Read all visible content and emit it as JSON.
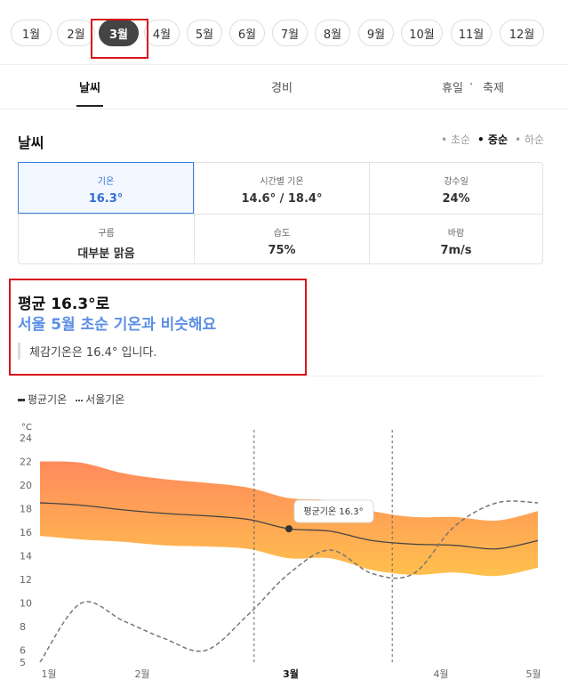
{
  "months": {
    "items": [
      "1월",
      "2월",
      "3월",
      "4월",
      "5월",
      "6월",
      "7월",
      "8월",
      "9월",
      "10월",
      "11월",
      "12월"
    ],
    "active_index": 2
  },
  "tabs": [
    "날씨",
    "경비",
    "휴일",
    "축제"
  ],
  "tabs_separator": "·",
  "weather": {
    "title": "날씨",
    "periods": [
      "초순",
      "중순",
      "하순"
    ],
    "active_period": "중순",
    "stats": [
      {
        "label": "기온",
        "value": "16.3°"
      },
      {
        "label": "시간별 기온",
        "value": "14.6° / 18.4°"
      },
      {
        "label": "강수일",
        "value": "24%"
      },
      {
        "label": "구름",
        "value": "대부분 맑음"
      },
      {
        "label": "습도",
        "value": "75%"
      },
      {
        "label": "바람",
        "value": "7m/s"
      }
    ]
  },
  "summary": {
    "line1": "평균 16.3°로",
    "line2": "서울 5월 초순 기온과 비슷해요",
    "line3": "체감기온은 16.4° 입니다."
  },
  "chart_data": {
    "type": "area",
    "unit": "°C",
    "legend": [
      "평균기온",
      "서울기온"
    ],
    "x_ticks": [
      "1월",
      "2월",
      "3월",
      "4월",
      "5월"
    ],
    "highlight_tick": "3월",
    "y_ticks": [
      24,
      22,
      20,
      18,
      16,
      14,
      12,
      10,
      8,
      6,
      5
    ],
    "ylim": [
      5,
      24
    ],
    "tooltip": "평균기온 16.3°",
    "x": [
      1,
      1.33,
      1.67,
      2,
      2.33,
      2.67,
      3,
      3.33,
      3.67,
      4,
      4.33,
      4.67,
      5
    ],
    "series": [
      {
        "name": "평균기온",
        "values": [
          18.5,
          18.3,
          17.9,
          17.6,
          17.4,
          17.1,
          16.3,
          16.1,
          15.3,
          15.0,
          14.9,
          14.6,
          15.3
        ]
      },
      {
        "name": "평균기온 최고",
        "values": [
          22.0,
          21.9,
          21.0,
          20.5,
          20.2,
          19.8,
          18.9,
          18.7,
          17.8,
          17.3,
          17.3,
          17.0,
          17.8
        ]
      },
      {
        "name": "평균기온 최저",
        "values": [
          15.7,
          15.4,
          15.2,
          14.9,
          14.8,
          14.6,
          13.8,
          13.8,
          12.8,
          12.4,
          12.6,
          12.3,
          13.0
        ]
      },
      {
        "name": "서울기온",
        "values": [
          5.0,
          10.0,
          8.5,
          7.0,
          6.0,
          9.0,
          12.5,
          14.5,
          12.5,
          12.5,
          16.5,
          18.5,
          18.5
        ]
      }
    ]
  },
  "colors": {
    "accent": "#3b7ddd",
    "highlight": "#d9131b",
    "band_top": "#ff8a5c",
    "band_bottom": "#ffc04d"
  }
}
